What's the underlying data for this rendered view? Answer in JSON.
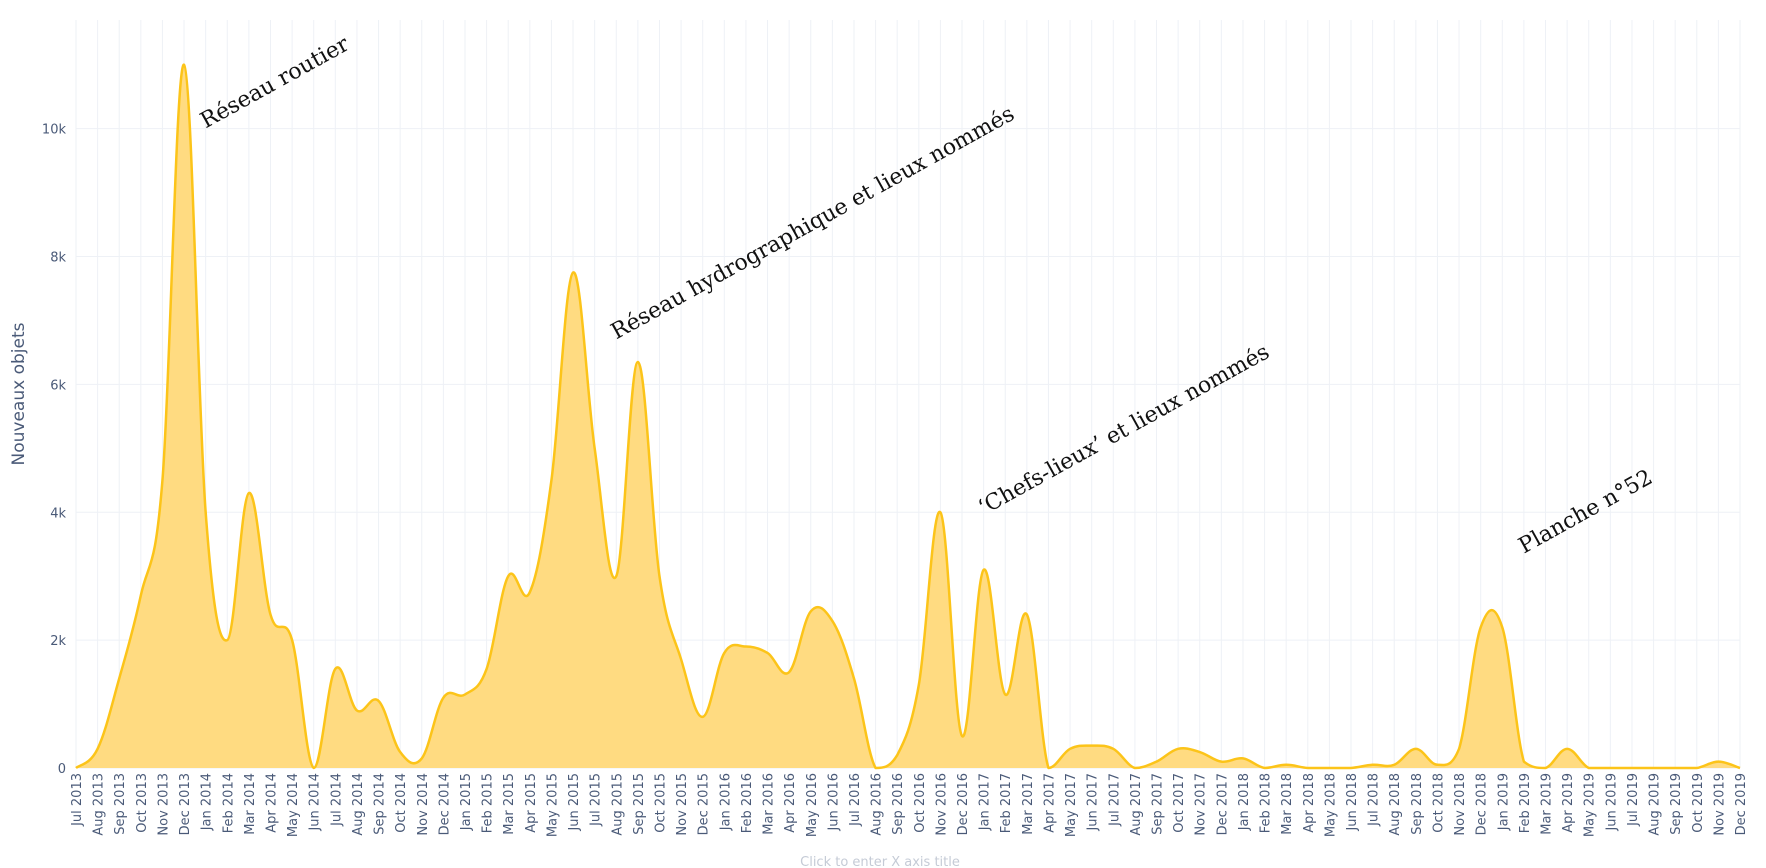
{
  "chart_data": {
    "type": "area",
    "title": "",
    "xlabel": "Click to enter X axis title",
    "ylabel": "Nouveaux objets",
    "ylim": [
      0,
      11700
    ],
    "grid": true,
    "series_color": "#fcc419",
    "fill_color": "#ffd97a",
    "y_ticks": [
      {
        "value": 0,
        "label": "0"
      },
      {
        "value": 2000,
        "label": "2k"
      },
      {
        "value": 4000,
        "label": "4k"
      },
      {
        "value": 6000,
        "label": "6k"
      },
      {
        "value": 8000,
        "label": "8k"
      },
      {
        "value": 10000,
        "label": "10k"
      }
    ],
    "categories": [
      "Jul 2013",
      "Aug 2013",
      "Sep 2013",
      "Oct 2013",
      "Nov 2013",
      "Dec 2013",
      "Jan 2014",
      "Feb 2014",
      "Mar 2014",
      "Apr 2014",
      "May 2014",
      "Jun 2014",
      "Jul 2014",
      "Aug 2014",
      "Sep 2014",
      "Oct 2014",
      "Nov 2014",
      "Dec 2014",
      "Jan 2015",
      "Feb 2015",
      "Mar 2015",
      "Apr 2015",
      "May 2015",
      "Jun 2015",
      "Jul 2015",
      "Aug 2015",
      "Sep 2015",
      "Oct 2015",
      "Nov 2015",
      "Dec 2015",
      "Jan 2016",
      "Feb 2016",
      "Mar 2016",
      "Apr 2016",
      "May 2016",
      "Jun 2016",
      "Jul 2016",
      "Aug 2016",
      "Sep 2016",
      "Oct 2016",
      "Nov 2016",
      "Dec 2016",
      "Jan 2017",
      "Feb 2017",
      "Mar 2017",
      "Apr 2017",
      "May 2017",
      "Jun 2017",
      "Jul 2017",
      "Aug 2017",
      "Sep 2017",
      "Oct 2017",
      "Nov 2017",
      "Dec 2017",
      "Jan 2018",
      "Feb 2018",
      "Mar 2018",
      "Apr 2018",
      "May 2018",
      "Jun 2018",
      "Jul 2018",
      "Aug 2018",
      "Sep 2018",
      "Oct 2018",
      "Nov 2018",
      "Dec 2018",
      "Jan 2019",
      "Feb 2019",
      "Mar 2019",
      "Apr 2019",
      "May 2019",
      "Jun 2019",
      "Jul 2019",
      "Aug 2019",
      "Sep 2019",
      "Oct 2019",
      "Nov 2019",
      "Dec 2019"
    ],
    "values": [
      0,
      300,
      1400,
      2700,
      4500,
      11000,
      4000,
      2000,
      4300,
      2400,
      2000,
      0,
      1550,
      900,
      1050,
      250,
      150,
      1100,
      1150,
      1550,
      3000,
      2750,
      4500,
      7750,
      5000,
      3000,
      6350,
      3000,
      1700,
      800,
      1800,
      1900,
      1800,
      1500,
      2450,
      2300,
      1400,
      0,
      200,
      1300,
      4000,
      500,
      3100,
      1150,
      2400,
      0,
      300,
      350,
      300,
      0,
      100,
      300,
      250,
      100,
      150,
      0,
      50,
      0,
      0,
      0,
      50,
      50,
      300,
      50,
      300,
      2200,
      2200,
      100,
      0,
      300,
      0,
      0,
      0,
      0,
      0,
      0,
      100,
      0
    ],
    "annotations": [
      {
        "text": "Réseau routier",
        "x_index": 6,
        "y": 10000,
        "rotate": -29
      },
      {
        "text": "Réseau hydrographique et lieux nommés",
        "x_index": 25,
        "y": 6700,
        "rotate": -29
      },
      {
        "text": "‘Chefs-lieux’ et lieux nommés",
        "x_index": 42,
        "y": 3950,
        "rotate": -29
      },
      {
        "text": "Planche n°52",
        "x_index": 67,
        "y": 3350,
        "rotate": -29
      }
    ]
  }
}
